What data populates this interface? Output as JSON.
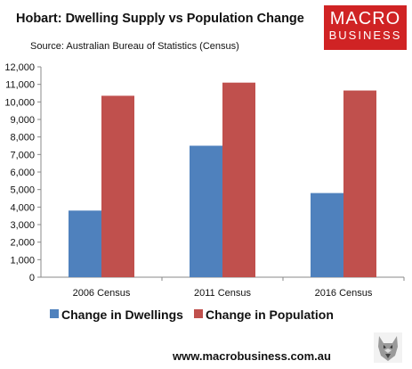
{
  "header": {
    "title": "Hobart: Dwelling Supply vs Population Change",
    "source": "Source: Australian Bureau of Statistics (Census)"
  },
  "logo": {
    "line1": "MACRO",
    "line2": "BUSINESS",
    "color": "#d02324"
  },
  "footer": {
    "url": "www.macrobusiness.com.au",
    "icon": "wolf-icon"
  },
  "chart_data": {
    "type": "bar",
    "categories": [
      "2006 Census",
      "2011 Census",
      "2016 Census"
    ],
    "series": [
      {
        "name": "Change in Dwellings",
        "values": [
          3800,
          7500,
          4800
        ],
        "color": "#4f81bd"
      },
      {
        "name": "Change in Population",
        "values": [
          10350,
          11100,
          10650
        ],
        "color": "#c0504d"
      }
    ],
    "ylim": [
      0,
      12000
    ],
    "yticks": [
      "0",
      "1,000",
      "2,000",
      "3,000",
      "4,000",
      "5,000",
      "6,000",
      "7,000",
      "8,000",
      "9,000",
      "10,000",
      "11,000",
      "12,000"
    ],
    "grid": false,
    "legend": "bottom"
  }
}
